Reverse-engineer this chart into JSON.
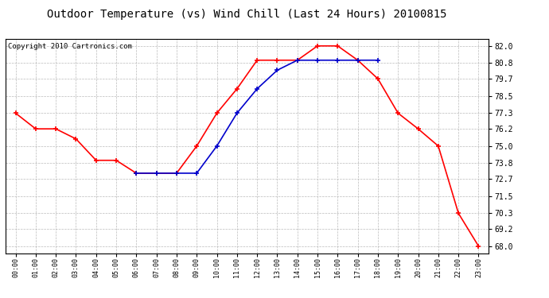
{
  "title": "Outdoor Temperature (vs) Wind Chill (Last 24 Hours) 20100815",
  "copyright": "Copyright 2010 Cartronics.com",
  "x_labels": [
    "00:00",
    "01:00",
    "02:00",
    "03:00",
    "04:00",
    "05:00",
    "06:00",
    "07:00",
    "08:00",
    "09:00",
    "10:00",
    "11:00",
    "12:00",
    "13:00",
    "14:00",
    "15:00",
    "16:00",
    "17:00",
    "18:00",
    "19:00",
    "20:00",
    "21:00",
    "22:00",
    "23:00"
  ],
  "temp_values": [
    77.3,
    76.2,
    76.2,
    75.5,
    74.0,
    74.0,
    73.1,
    73.1,
    73.1,
    75.0,
    77.3,
    79.0,
    81.0,
    81.0,
    81.0,
    82.0,
    82.0,
    81.0,
    79.7,
    77.3,
    76.2,
    75.0,
    70.3,
    68.0
  ],
  "windchill_values": [
    null,
    null,
    null,
    null,
    null,
    null,
    73.1,
    73.1,
    73.1,
    73.1,
    75.0,
    77.3,
    79.0,
    80.3,
    81.0,
    81.0,
    81.0,
    81.0,
    81.0,
    null,
    null,
    null,
    null,
    null
  ],
  "temp_color": "#ff0000",
  "windchill_color": "#0000cc",
  "background_color": "#ffffff",
  "plot_bg_color": "#ffffff",
  "grid_color": "#aaaaaa",
  "ylim": [
    67.5,
    82.5
  ],
  "yticks": [
    68.0,
    69.2,
    70.3,
    71.5,
    72.7,
    73.8,
    75.0,
    76.2,
    77.3,
    78.5,
    79.7,
    80.8,
    82.0
  ],
  "title_fontsize": 10,
  "copyright_fontsize": 6.5,
  "marker": "+",
  "marker_size": 5,
  "linewidth": 1.2
}
